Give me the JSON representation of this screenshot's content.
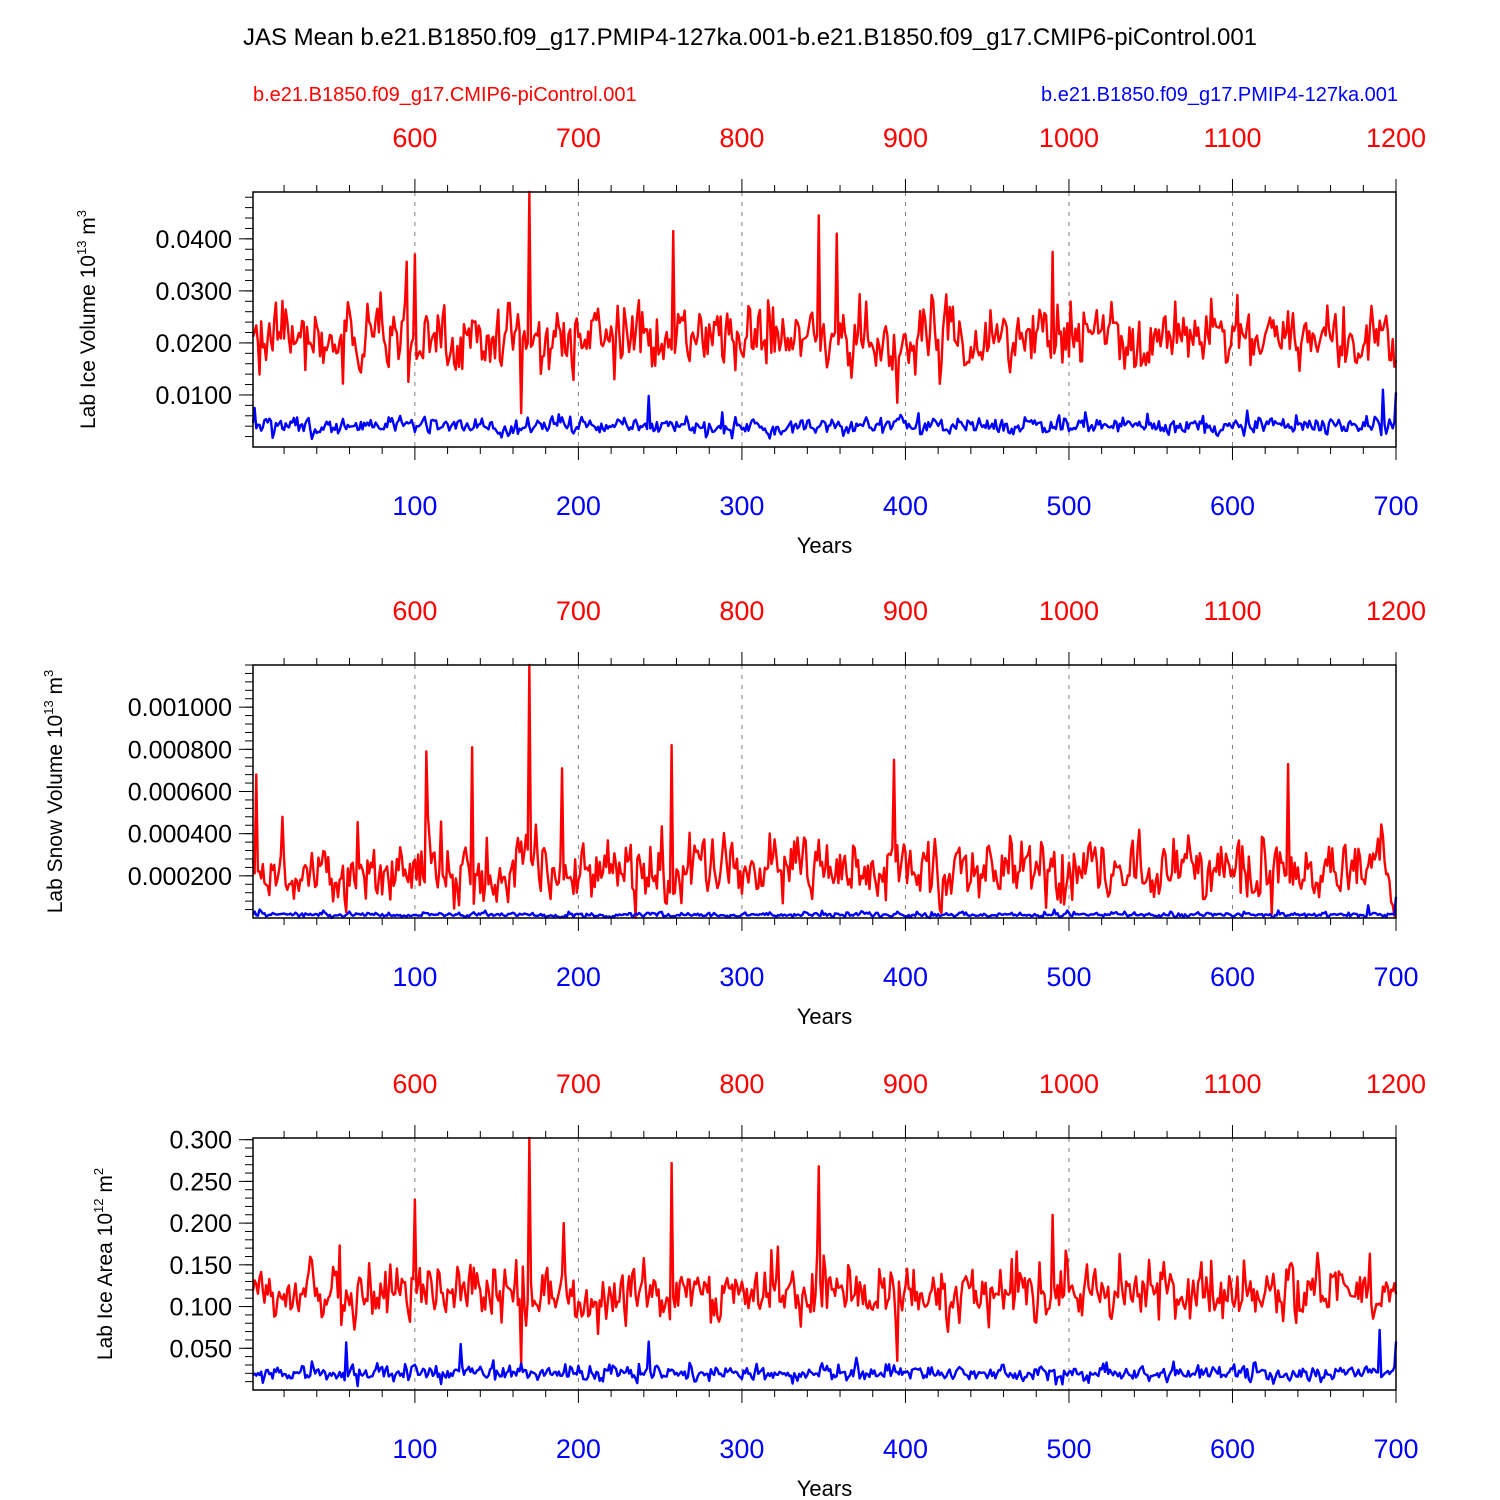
{
  "title": "JAS Mean b.e21.B1850.f09_g17.PMIP4-127ka.001-b.e21.B1850.f09_g17.CMIP6-piControl.001",
  "colors": {
    "control": "#ff0000",
    "pmip": "#0000ff",
    "axis": "#000000",
    "grid": "#808080"
  },
  "legend": {
    "control": "b.e21.B1850.f09_g17.CMIP6-piControl.001",
    "pmip": "b.e21.B1850.f09_g17.PMIP4-127ka.001"
  },
  "chart_data": [
    {
      "type": "line",
      "ylabel": {
        "base": "Lab Ice Volume 10",
        "exp": "13",
        "unit": "m",
        "unit_exp": "3"
      },
      "xlabel": "Years",
      "top_axis": {
        "range": [
          501,
          1200
        ],
        "ticks": [
          "600",
          "700",
          "800",
          "900",
          "1000",
          "1100",
          "1200"
        ]
      },
      "bottom_axis": {
        "range": [
          1,
          700
        ],
        "ticks": [
          "100",
          "200",
          "300",
          "400",
          "500",
          "600",
          "700"
        ]
      },
      "ylim": [
        0,
        0.049
      ],
      "yticks": [
        "0.0100",
        "0.0200",
        "0.0300",
        "0.0400"
      ],
      "ytick_values": [
        0.01,
        0.02,
        0.03,
        0.04
      ],
      "grid": "vertical dashed at top-axis hundreds",
      "series": [
        {
          "name": "b.e21.B1850.f09_g17.CMIP6-piControl.001",
          "color": "#ff0000",
          "mean": 0.0205,
          "std": 0.0055,
          "min": 0.0065,
          "max": 0.049,
          "peaks": [
            [
              170,
              0.049
            ],
            [
              347,
              0.0445
            ],
            [
              358,
              0.041
            ],
            [
              258,
              0.0415
            ],
            [
              100,
              0.037
            ],
            [
              490,
              0.0375
            ],
            [
              165,
              0.0065
            ],
            [
              395,
              0.0085
            ]
          ]
        },
        {
          "name": "b.e21.B1850.f09_g17.PMIP4-127ka.001",
          "color": "#0000ff",
          "mean": 0.004,
          "std": 0.0014,
          "min": 0.0005,
          "max": 0.011,
          "peaks": [
            [
              243,
              0.0098
            ],
            [
              692,
              0.011
            ],
            [
              700,
              0.0105
            ],
            [
              2,
              0.0075
            ]
          ]
        }
      ]
    },
    {
      "type": "line",
      "ylabel": {
        "base": "Lab Snow Volume 10",
        "exp": "13",
        "unit": "m",
        "unit_exp": "3"
      },
      "xlabel": "Years",
      "top_axis": {
        "range": [
          501,
          1200
        ],
        "ticks": [
          "600",
          "700",
          "800",
          "900",
          "1000",
          "1100",
          "1200"
        ]
      },
      "bottom_axis": {
        "range": [
          1,
          700
        ],
        "ticks": [
          "100",
          "200",
          "300",
          "400",
          "500",
          "600",
          "700"
        ]
      },
      "ylim": [
        0,
        0.0012
      ],
      "yticks": [
        "0.000200",
        "0.000400",
        "0.000600",
        "0.000800",
        "0.001000"
      ],
      "ytick_values": [
        0.0002,
        0.0004,
        0.0006,
        0.0008,
        0.001
      ],
      "grid": "vertical dashed at top-axis hundreds",
      "series": [
        {
          "name": "b.e21.B1850.f09_g17.CMIP6-piControl.001",
          "color": "#ff0000",
          "mean": 0.00022,
          "std": 0.00013,
          "min": 5e-06,
          "max": 0.0012,
          "peaks": [
            [
              170,
              0.0012
            ],
            [
              107,
              0.00079
            ],
            [
              135,
              0.00081
            ],
            [
              257,
              0.00082
            ],
            [
              634,
              0.00073
            ],
            [
              393,
              0.00075
            ],
            [
              3,
              0.00068
            ],
            [
              190,
              0.00071
            ]
          ]
        },
        {
          "name": "b.e21.B1850.f09_g17.PMIP4-127ka.001",
          "color": "#0000ff",
          "mean": 1.5e-05,
          "std": 1e-05,
          "min": 0.0,
          "max": 0.0001,
          "peaks": [
            [
              700,
              0.0001
            ],
            [
              683,
              6e-05
            ],
            [
              5,
              4e-05
            ]
          ]
        }
      ]
    },
    {
      "type": "line",
      "ylabel": {
        "base": "Lab Ice Area 10",
        "exp": "12",
        "unit": "m",
        "unit_exp": "2"
      },
      "xlabel": "Years",
      "top_axis": {
        "range": [
          501,
          1200
        ],
        "ticks": [
          "600",
          "700",
          "800",
          "900",
          "1000",
          "1100",
          "1200"
        ]
      },
      "bottom_axis": {
        "range": [
          1,
          700
        ],
        "ticks": [
          "100",
          "200",
          "300",
          "400",
          "500",
          "600",
          "700"
        ]
      },
      "ylim": [
        0,
        0.302
      ],
      "yticks": [
        "0.050",
        "0.100",
        "0.150",
        "0.200",
        "0.250",
        "0.300"
      ],
      "ytick_values": [
        0.05,
        0.1,
        0.15,
        0.2,
        0.25,
        0.3
      ],
      "grid": "vertical dashed at top-axis hundreds",
      "series": [
        {
          "name": "b.e21.B1850.f09_g17.CMIP6-piControl.001",
          "color": "#ff0000",
          "mean": 0.115,
          "std": 0.03,
          "min": 0.03,
          "max": 0.302,
          "peaks": [
            [
              170,
              0.302
            ],
            [
              257,
              0.272
            ],
            [
              347,
              0.268
            ],
            [
              100,
              0.228
            ],
            [
              191,
              0.2
            ],
            [
              395,
              0.035
            ],
            [
              165,
              0.03
            ],
            [
              490,
              0.21
            ]
          ]
        },
        {
          "name": "b.e21.B1850.f09_g17.PMIP4-127ka.001",
          "color": "#0000ff",
          "mean": 0.02,
          "std": 0.008,
          "min": 0.003,
          "max": 0.072,
          "peaks": [
            [
              243,
              0.058
            ],
            [
              690,
              0.072
            ],
            [
              700,
              0.058
            ],
            [
              58,
              0.057
            ],
            [
              128,
              0.055
            ]
          ]
        }
      ]
    }
  ]
}
